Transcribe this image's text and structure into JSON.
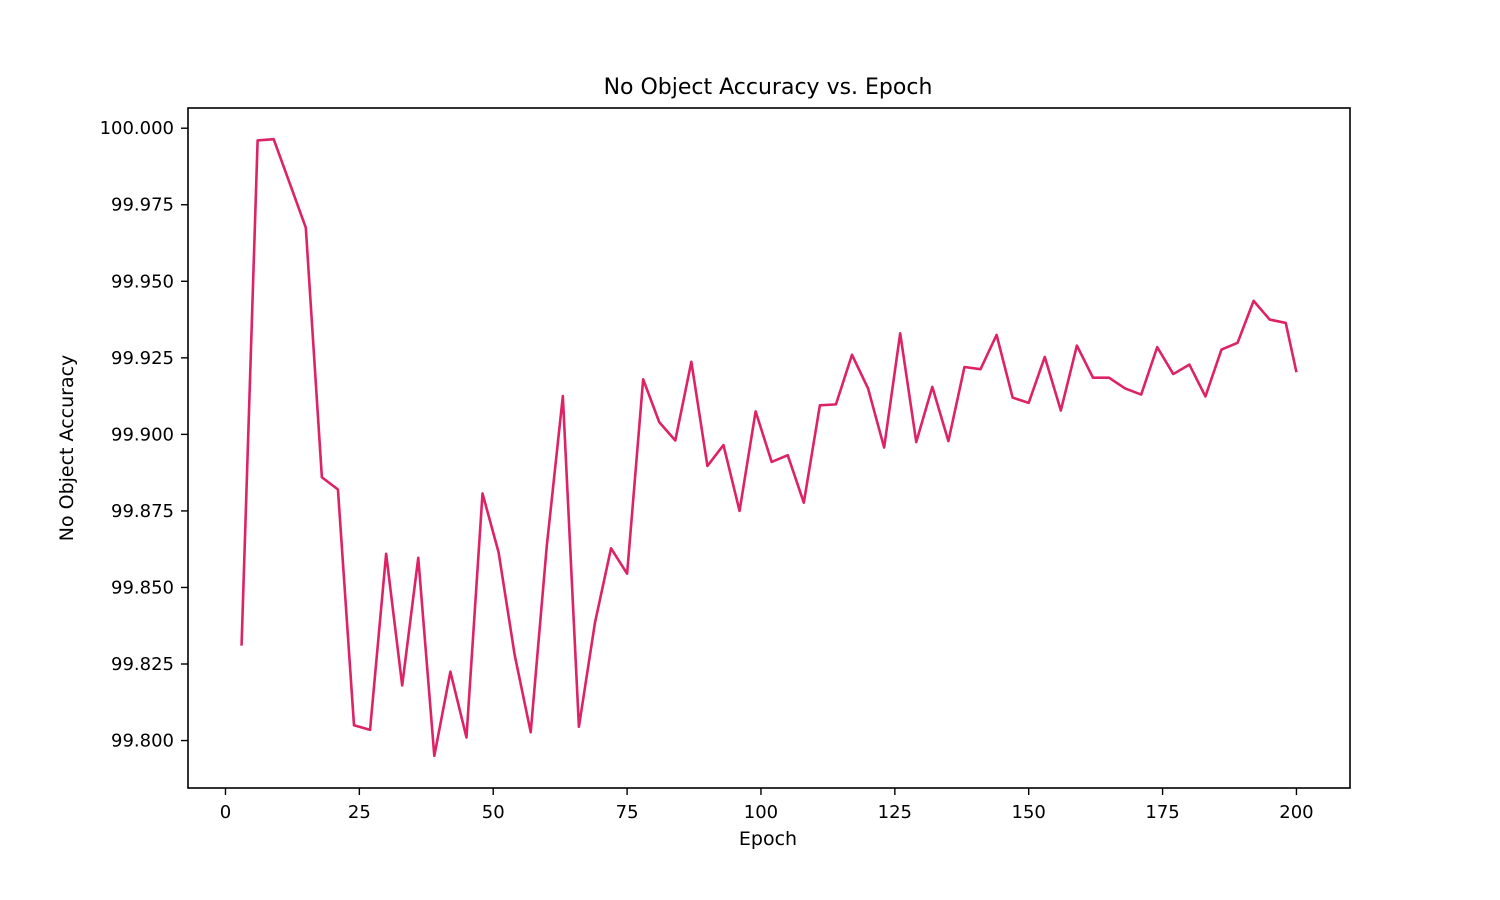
{
  "chart_data": {
    "type": "line",
    "title": "No Object Accuracy vs. Epoch",
    "xlabel": "Epoch",
    "ylabel": "No Object Accuracy",
    "xlim": [
      -7,
      210
    ],
    "ylim": [
      99.7845,
      100.0066
    ],
    "xticks": [
      0,
      25,
      50,
      75,
      100,
      125,
      150,
      175,
      200
    ],
    "yticks": [
      99.8,
      99.825,
      99.85,
      99.875,
      99.9,
      99.925,
      99.95,
      99.975,
      100.0
    ],
    "ytick_labels": [
      "99.800",
      "99.825",
      "99.850",
      "99.875",
      "99.900",
      "99.925",
      "99.950",
      "99.975",
      "100.000"
    ],
    "grid": false,
    "colors": {
      "line": "#dd2266"
    },
    "series": [
      {
        "x": [
          3,
          6,
          9,
          12,
          15,
          18,
          21,
          24,
          27,
          30,
          33,
          36,
          39,
          42,
          45,
          48,
          51,
          54,
          57,
          60,
          63,
          66,
          69,
          72,
          75,
          78,
          81,
          84,
          87,
          90,
          93,
          96,
          99,
          102,
          105,
          108,
          111,
          114,
          117,
          120,
          123,
          126,
          129,
          132,
          135,
          138,
          141,
          144,
          147,
          150,
          153,
          156,
          159,
          162,
          165,
          168,
          171,
          174,
          177,
          180,
          183,
          186,
          189,
          192,
          195,
          198,
          200
        ],
        "values": [
          99.831,
          99.996,
          99.9964,
          99.982,
          99.9675,
          99.886,
          99.882,
          99.805,
          99.8035,
          99.861,
          99.818,
          99.8597,
          99.795,
          99.8225,
          99.801,
          99.8807,
          99.8615,
          99.828,
          99.8027,
          99.8635,
          99.9125,
          99.8045,
          99.8385,
          99.8628,
          99.8545,
          99.918,
          99.904,
          99.898,
          99.9237,
          99.8897,
          99.8965,
          99.875,
          99.9075,
          99.891,
          99.8932,
          99.8777,
          99.9095,
          99.9098,
          99.926,
          99.915,
          99.8957,
          99.933,
          99.8975,
          99.9155,
          99.8978,
          99.922,
          99.9213,
          99.9325,
          99.912,
          99.9103,
          99.9253,
          99.9078,
          99.929,
          99.9185,
          99.9185,
          99.915,
          99.913,
          99.9285,
          99.9197,
          99.9228,
          99.9124,
          99.9277,
          99.9299,
          99.9436,
          99.9375,
          99.9364,
          99.9203
        ]
      }
    ]
  }
}
